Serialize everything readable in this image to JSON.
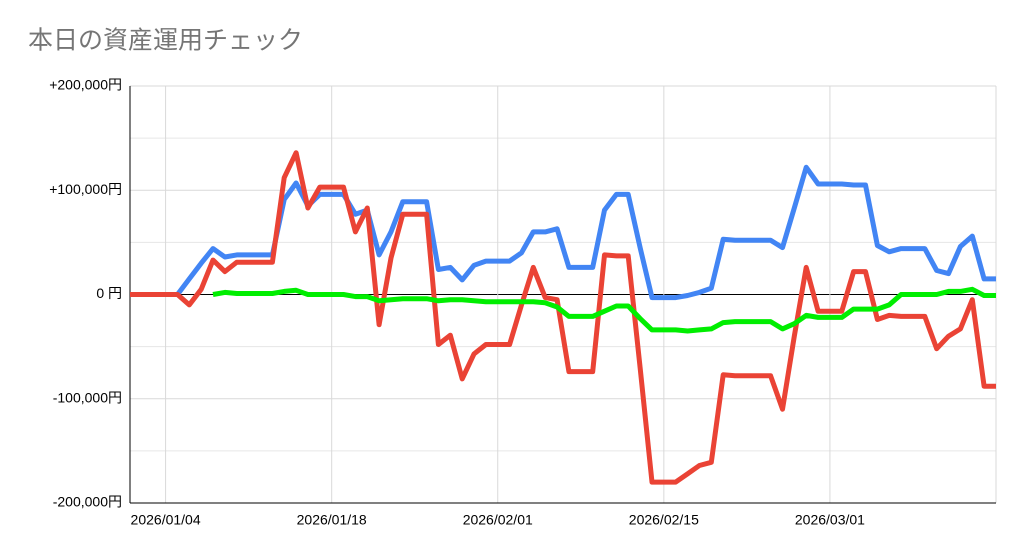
{
  "chart_data": {
    "type": "line",
    "title": "本日の資産運用チェック",
    "x": [
      "2026/01/01",
      "2026/01/02",
      "2026/01/03",
      "2026/01/04",
      "2026/01/05",
      "2026/01/06",
      "2026/01/07",
      "2026/01/08",
      "2026/01/09",
      "2026/01/10",
      "2026/01/11",
      "2026/01/12",
      "2026/01/13",
      "2026/01/14",
      "2026/01/15",
      "2026/01/16",
      "2026/01/17",
      "2026/01/18",
      "2026/01/19",
      "2026/01/20",
      "2026/01/21",
      "2026/01/22",
      "2026/01/23",
      "2026/01/24",
      "2026/01/25",
      "2026/01/26",
      "2026/01/27",
      "2026/01/28",
      "2026/01/29",
      "2026/01/30",
      "2026/01/31",
      "2026/02/01",
      "2026/02/02",
      "2026/02/03",
      "2026/02/04",
      "2026/02/05",
      "2026/02/06",
      "2026/02/07",
      "2026/02/08",
      "2026/02/09",
      "2026/02/10",
      "2026/02/11",
      "2026/02/12",
      "2026/02/13",
      "2026/02/14",
      "2026/02/15",
      "2026/02/16",
      "2026/02/17",
      "2026/02/18",
      "2026/02/19",
      "2026/02/20",
      "2026/02/21",
      "2026/02/22",
      "2026/02/23",
      "2026/02/24",
      "2026/02/25",
      "2026/02/26",
      "2026/02/27",
      "2026/02/28",
      "2026/03/01",
      "2026/03/02",
      "2026/03/03",
      "2026/03/04",
      "2026/03/05",
      "2026/03/06",
      "2026/03/07",
      "2026/03/08",
      "2026/03/09",
      "2026/03/10",
      "2026/03/11",
      "2026/03/12",
      "2026/03/13",
      "2026/03/14",
      "2026/03/15"
    ],
    "series": [
      {
        "color": "#4285f4",
        "values": [
          0,
          0,
          0,
          0,
          0,
          15000,
          30000,
          44000,
          36000,
          38000,
          38000,
          38000,
          38000,
          91000,
          107000,
          85000,
          96000,
          96000,
          96000,
          77000,
          81000,
          38000,
          60000,
          89000,
          89000,
          89000,
          24000,
          26000,
          14000,
          28000,
          32000,
          32000,
          32000,
          40000,
          60000,
          60000,
          63000,
          26000,
          26000,
          26000,
          81000,
          96000,
          96000,
          45000,
          -3000,
          -3000,
          -3000,
          -1000,
          2000,
          6000,
          53000,
          52000,
          52000,
          52000,
          52000,
          45000,
          83000,
          122000,
          106000,
          106000,
          106000,
          105000,
          105000,
          47000,
          41000,
          44000,
          44000,
          44000,
          23000,
          20000,
          46000,
          56000,
          15000,
          15000
        ]
      },
      {
        "color": "#ea4335",
        "values": [
          0,
          0,
          0,
          0,
          0,
          -10000,
          5000,
          33000,
          22000,
          31000,
          31000,
          31000,
          31000,
          112000,
          136000,
          83000,
          103000,
          103000,
          103000,
          60000,
          83000,
          -29000,
          35000,
          77000,
          77000,
          77000,
          -48000,
          -39000,
          -81000,
          -57000,
          -48000,
          -48000,
          -48000,
          -10000,
          26000,
          -3000,
          -5000,
          -74000,
          -74000,
          -74000,
          38000,
          37000,
          37000,
          -70000,
          -180000,
          -180000,
          -180000,
          -172000,
          -164000,
          -161000,
          -77000,
          -78000,
          -78000,
          -78000,
          -78000,
          -110000,
          -40000,
          26000,
          -16000,
          -16000,
          -16000,
          22000,
          22000,
          -24000,
          -20000,
          -21000,
          -21000,
          -21000,
          -52000,
          -40000,
          -33000,
          -5000,
          -88000,
          -88000
        ]
      },
      {
        "color": "#00ee00",
        "values": [
          null,
          null,
          null,
          null,
          null,
          null,
          null,
          0,
          2000,
          1000,
          1000,
          1000,
          1000,
          3000,
          4000,
          0,
          0,
          0,
          0,
          -2000,
          -2000,
          -6000,
          -5000,
          -4000,
          -4000,
          -4000,
          -6000,
          -5000,
          -5000,
          -6000,
          -7000,
          -7000,
          -7000,
          -7000,
          -7000,
          -8000,
          -12000,
          -21000,
          -21000,
          -21000,
          -16000,
          -11000,
          -11000,
          -23000,
          -34000,
          -34000,
          -34000,
          -35000,
          -34000,
          -33000,
          -27000,
          -26000,
          -26000,
          -26000,
          -26000,
          -33000,
          -28000,
          -20000,
          -22000,
          -22000,
          -22000,
          -14000,
          -14000,
          -14000,
          -10000,
          0,
          0,
          0,
          0,
          3000,
          3000,
          5000,
          -1000,
          -1000
        ]
      }
    ],
    "xlim": [
      "2026/01/01",
      "2026/03/15"
    ],
    "xticks": [
      "2026/01/04",
      "2026/01/18",
      "2026/02/01",
      "2026/02/15",
      "2026/03/01"
    ],
    "ylim": [
      -200000,
      200000
    ],
    "yticks": [
      {
        "value": 200000,
        "label": "+200,000円"
      },
      {
        "value": 100000,
        "label": "+100,000円"
      },
      {
        "value": 0,
        "label": "0 円"
      },
      {
        "value": -100000,
        "label": "-100,000円"
      },
      {
        "value": -200000,
        "label": "-200,000円"
      }
    ],
    "minor_yticks": [
      150000,
      50000,
      -50000,
      -150000
    ],
    "grid": true
  }
}
